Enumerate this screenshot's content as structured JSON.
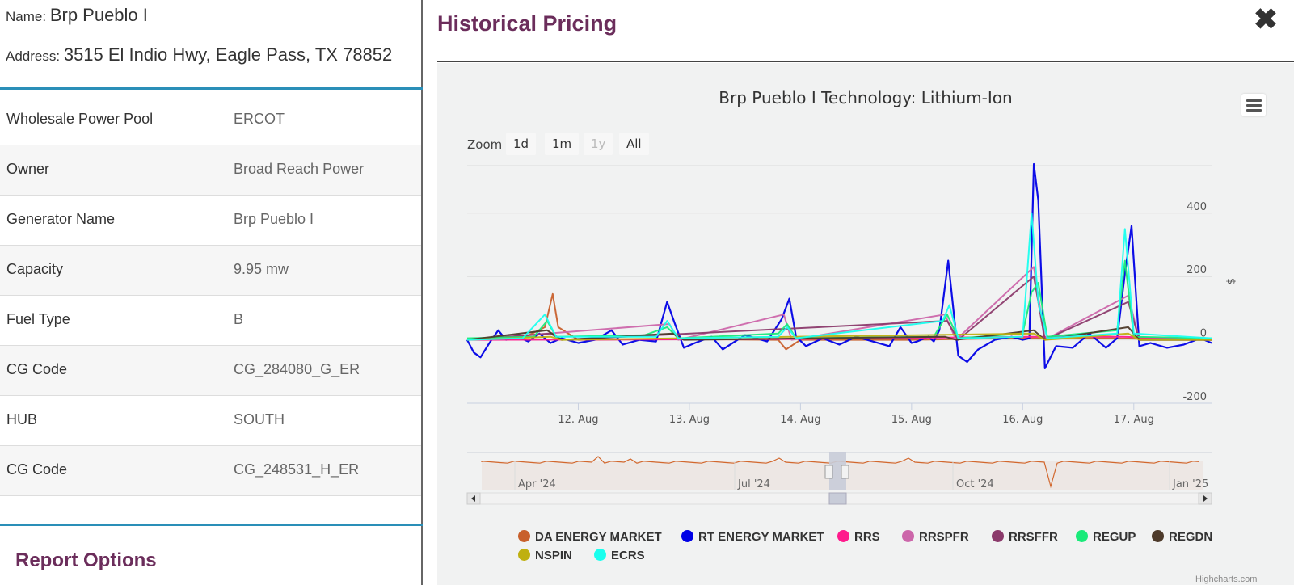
{
  "header": {
    "name_label": "Name:",
    "name_value": "Brp Pueblo I",
    "address_label": "Address:",
    "address_value": "3515 El Indio Hwy, Eagle Pass, TX 78852"
  },
  "properties": [
    {
      "key": "Wholesale Power Pool",
      "value": "ERCOT"
    },
    {
      "key": "Owner",
      "value": "Broad Reach Power"
    },
    {
      "key": "Generator Name",
      "value": "Brp Pueblo I"
    },
    {
      "key": "Capacity",
      "value": "9.95 mw"
    },
    {
      "key": "Fuel Type",
      "value": "B"
    },
    {
      "key": "CG Code",
      "value": "CG_284080_G_ER"
    },
    {
      "key": "HUB",
      "value": "SOUTH"
    },
    {
      "key": "CG Code",
      "value": "CG_248531_H_ER"
    }
  ],
  "report_options_title": "Report Options",
  "modal": {
    "title": "Historical Pricing",
    "close_icon": "close-icon"
  },
  "zoom": {
    "label": "Zoom",
    "buttons": [
      "1d",
      "1m",
      "1y",
      "All"
    ],
    "disabled": "1y"
  },
  "credits": "Highcharts.com",
  "chart_data": {
    "type": "line",
    "title": "Brp Pueblo I Technology: Lithium-Ion",
    "ylabel": "$",
    "ylim": [
      -200,
      550
    ],
    "y_ticks": [
      -200,
      0,
      200,
      400
    ],
    "x_ticks": [
      "12. Aug",
      "13. Aug",
      "14. Aug",
      "15. Aug",
      "16. Aug",
      "17. Aug"
    ],
    "x_range_days": [
      11.0,
      17.7
    ],
    "grid": true,
    "legend_position": "bottom",
    "series": [
      {
        "name": "DA ENERGY MARKET",
        "color": "#c8602c",
        "points": [
          [
            11.0,
            0
          ],
          [
            11.5,
            5
          ],
          [
            11.7,
            40
          ],
          [
            11.77,
            145
          ],
          [
            11.82,
            40
          ],
          [
            12.0,
            0
          ],
          [
            12.8,
            2
          ],
          [
            13.8,
            0
          ],
          [
            13.87,
            -30
          ],
          [
            14.0,
            0
          ],
          [
            15.0,
            0
          ],
          [
            15.8,
            5
          ],
          [
            16.8,
            5
          ],
          [
            17.7,
            0
          ]
        ]
      },
      {
        "name": "RT ENERGY MARKET",
        "color": "#0000e6",
        "points": [
          [
            11.0,
            0
          ],
          [
            11.06,
            -40
          ],
          [
            11.12,
            -55
          ],
          [
            11.2,
            -10
          ],
          [
            11.28,
            30
          ],
          [
            11.35,
            0
          ],
          [
            11.45,
            10
          ],
          [
            11.55,
            -5
          ],
          [
            11.65,
            20
          ],
          [
            11.75,
            -10
          ],
          [
            11.85,
            5
          ],
          [
            12.0,
            -10
          ],
          [
            12.15,
            0
          ],
          [
            12.3,
            30
          ],
          [
            12.4,
            -15
          ],
          [
            12.55,
            0
          ],
          [
            12.7,
            -5
          ],
          [
            12.8,
            120
          ],
          [
            12.87,
            50
          ],
          [
            12.95,
            -25
          ],
          [
            13.05,
            -10
          ],
          [
            13.2,
            10
          ],
          [
            13.3,
            -30
          ],
          [
            13.5,
            15
          ],
          [
            13.7,
            -5
          ],
          [
            13.83,
            65
          ],
          [
            13.9,
            130
          ],
          [
            13.96,
            10
          ],
          [
            14.05,
            -20
          ],
          [
            14.2,
            5
          ],
          [
            14.35,
            -15
          ],
          [
            14.5,
            10
          ],
          [
            14.65,
            -5
          ],
          [
            14.8,
            -20
          ],
          [
            14.9,
            40
          ],
          [
            15.0,
            -10
          ],
          [
            15.05,
            -5
          ],
          [
            15.15,
            10
          ],
          [
            15.2,
            -5
          ],
          [
            15.25,
            30
          ],
          [
            15.33,
            250
          ],
          [
            15.42,
            -50
          ],
          [
            15.5,
            -70
          ],
          [
            15.6,
            -30
          ],
          [
            15.75,
            0
          ],
          [
            15.9,
            10
          ],
          [
            16.0,
            0
          ],
          [
            16.06,
            5
          ],
          [
            16.1,
            555
          ],
          [
            16.14,
            440
          ],
          [
            16.2,
            -90
          ],
          [
            16.3,
            -20
          ],
          [
            16.45,
            -25
          ],
          [
            16.6,
            20
          ],
          [
            16.75,
            -25
          ],
          [
            16.85,
            5
          ],
          [
            16.92,
            210
          ],
          [
            16.98,
            360
          ],
          [
            17.05,
            -20
          ],
          [
            17.15,
            -10
          ],
          [
            17.3,
            -25
          ],
          [
            17.45,
            -15
          ],
          [
            17.6,
            5
          ],
          [
            17.7,
            -10
          ]
        ]
      },
      {
        "name": "RRS",
        "color": "#ff1a8c",
        "points": [
          [
            11.0,
            0
          ],
          [
            13.8,
            2
          ],
          [
            16.05,
            10
          ],
          [
            16.9,
            10
          ],
          [
            17.7,
            0
          ]
        ]
      },
      {
        "name": "RRSPFR",
        "color": "#cc66aa",
        "points": [
          [
            11.0,
            0
          ],
          [
            12.82,
            50
          ],
          [
            12.9,
            0
          ],
          [
            13.85,
            80
          ],
          [
            13.92,
            0
          ],
          [
            15.3,
            80
          ],
          [
            15.4,
            0
          ],
          [
            16.1,
            230
          ],
          [
            16.2,
            0
          ],
          [
            16.95,
            140
          ],
          [
            17.05,
            0
          ],
          [
            17.7,
            0
          ]
        ]
      },
      {
        "name": "RRSFFR",
        "color": "#8b3a6b",
        "points": [
          [
            11.0,
            0
          ],
          [
            11.75,
            20
          ],
          [
            11.85,
            0
          ],
          [
            15.32,
            60
          ],
          [
            15.42,
            0
          ],
          [
            16.1,
            200
          ],
          [
            16.2,
            0
          ],
          [
            16.95,
            120
          ],
          [
            17.05,
            0
          ],
          [
            17.7,
            0
          ]
        ]
      },
      {
        "name": "REGUP",
        "color": "#1aea7a",
        "points": [
          [
            11.0,
            5
          ],
          [
            11.6,
            10
          ],
          [
            11.72,
            60
          ],
          [
            11.8,
            10
          ],
          [
            12.6,
            15
          ],
          [
            12.8,
            40
          ],
          [
            12.9,
            5
          ],
          [
            13.8,
            20
          ],
          [
            13.88,
            50
          ],
          [
            13.96,
            5
          ],
          [
            15.2,
            10
          ],
          [
            15.32,
            80
          ],
          [
            15.42,
            5
          ],
          [
            16.0,
            20
          ],
          [
            16.08,
            150
          ],
          [
            16.14,
            180
          ],
          [
            16.22,
            10
          ],
          [
            16.85,
            30
          ],
          [
            16.92,
            250
          ],
          [
            17.0,
            10
          ],
          [
            17.7,
            5
          ]
        ]
      },
      {
        "name": "REGDN",
        "color": "#4d3a2a",
        "points": [
          [
            11.0,
            0
          ],
          [
            11.72,
            30
          ],
          [
            11.85,
            0
          ],
          [
            12.85,
            20
          ],
          [
            12.95,
            0
          ],
          [
            15.3,
            10
          ],
          [
            15.4,
            0
          ],
          [
            16.1,
            30
          ],
          [
            16.2,
            0
          ],
          [
            16.95,
            40
          ],
          [
            17.05,
            0
          ],
          [
            17.7,
            0
          ]
        ]
      },
      {
        "name": "NSPIN",
        "color": "#bfb010",
        "points": [
          [
            11.0,
            0
          ],
          [
            11.75,
            10
          ],
          [
            11.85,
            0
          ],
          [
            16.1,
            20
          ],
          [
            16.2,
            0
          ],
          [
            16.95,
            20
          ],
          [
            17.05,
            0
          ],
          [
            17.7,
            0
          ]
        ]
      },
      {
        "name": "ECRS",
        "color": "#1affee",
        "points": [
          [
            11.0,
            0
          ],
          [
            11.5,
            5
          ],
          [
            11.7,
            80
          ],
          [
            11.8,
            10
          ],
          [
            12.7,
            10
          ],
          [
            12.8,
            60
          ],
          [
            12.9,
            5
          ],
          [
            13.8,
            10
          ],
          [
            13.88,
            40
          ],
          [
            13.96,
            5
          ],
          [
            15.28,
            60
          ],
          [
            15.34,
            110
          ],
          [
            15.42,
            5
          ],
          [
            16.0,
            10
          ],
          [
            16.08,
            400
          ],
          [
            16.14,
            120
          ],
          [
            16.22,
            5
          ],
          [
            16.85,
            20
          ],
          [
            16.92,
            350
          ],
          [
            17.0,
            20
          ],
          [
            17.7,
            5
          ]
        ]
      }
    ],
    "navigator": {
      "x_ticks": [
        "Apr '24",
        "Jul '24",
        "Oct '24",
        "Jan '25"
      ]
    }
  }
}
